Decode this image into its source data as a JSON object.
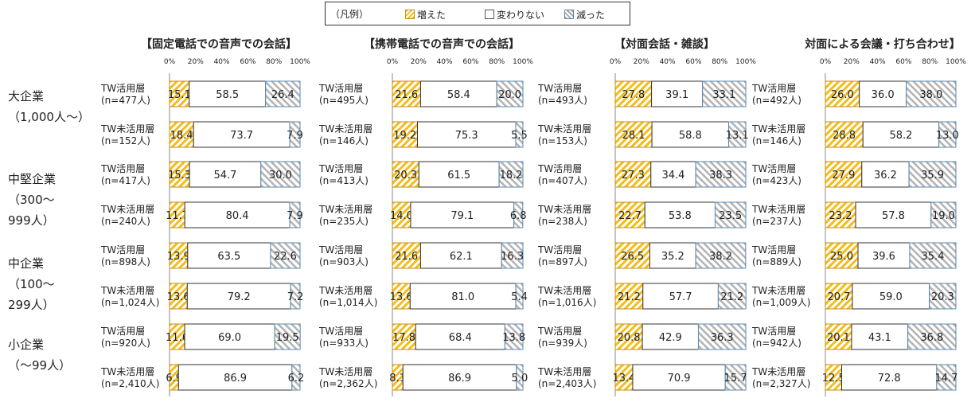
{
  "legend": {
    "title": "（凡例）",
    "items": [
      {
        "label": "増えた",
        "key": "inc"
      },
      {
        "label": "変わりない",
        "key": "same"
      },
      {
        "label": "減った",
        "key": "dec"
      }
    ]
  },
  "groups": [
    {
      "label": "大企業\n（1,000人～）"
    },
    {
      "label": "中堅企業\n（300～\n999人）"
    },
    {
      "label": "中企業\n（100～\n299人）"
    },
    {
      "label": "小企業\n（～99人）"
    }
  ],
  "colors": {
    "increase": "#f2bd1d",
    "increase_border": "#c98a18",
    "decrease": "#a8a8a8",
    "decrease_border": "#5a89b0",
    "bar_border": "#333333"
  },
  "chart_data": [
    {
      "type": "bar",
      "stacked": true,
      "orientation": "horizontal",
      "title": "【固定電話での音声での会話】",
      "xlim": [
        0,
        100
      ],
      "ticks": [
        "0%",
        "20%",
        "40%",
        "60%",
        "80%",
        "100%"
      ],
      "rows": [
        {
          "label": "TW活用層",
          "n": "(n=477人)",
          "values": [
            15.1,
            58.5,
            26.4
          ]
        },
        {
          "label": "TW未活用層",
          "n": "(n=152人)",
          "values": [
            18.4,
            73.7,
            7.9
          ]
        },
        {
          "label": "TW活用層",
          "n": "(n=417人)",
          "values": [
            15.3,
            54.7,
            30.0
          ]
        },
        {
          "label": "TW未活用層",
          "n": "(n=240人)",
          "values": [
            11.7,
            80.4,
            7.9
          ]
        },
        {
          "label": "TW活用層",
          "n": "(n=898人)",
          "values": [
            13.9,
            63.5,
            22.6
          ]
        },
        {
          "label": "TW未活用層",
          "n": "(n=1,024人)",
          "values": [
            13.6,
            79.2,
            7.2
          ]
        },
        {
          "label": "TW活用層",
          "n": "(n=920人)",
          "values": [
            11.6,
            69.0,
            19.5
          ]
        },
        {
          "label": "TW未活用層",
          "n": "(n=2,410人)",
          "values": [
            6.9,
            86.9,
            6.2
          ]
        }
      ]
    },
    {
      "type": "bar",
      "stacked": true,
      "orientation": "horizontal",
      "title": "【携帯電話での音声での会話】",
      "xlim": [
        0,
        100
      ],
      "ticks": [
        "0%",
        "20%",
        "40%",
        "60%",
        "80%",
        "100%"
      ],
      "rows": [
        {
          "label": "TW活用層",
          "n": "(n=495人)",
          "values": [
            21.6,
            58.4,
            20.0
          ]
        },
        {
          "label": "TW未活用層",
          "n": "(n=146人)",
          "values": [
            19.2,
            75.3,
            5.5
          ]
        },
        {
          "label": "TW活用層",
          "n": "(n=413人)",
          "values": [
            20.3,
            61.5,
            18.2
          ]
        },
        {
          "label": "TW未活用層",
          "n": "(n=235人)",
          "values": [
            14.0,
            79.1,
            6.8
          ]
        },
        {
          "label": "TW活用層",
          "n": "(n=903人)",
          "values": [
            21.6,
            62.1,
            16.3
          ]
        },
        {
          "label": "TW未活用層",
          "n": "(n=1,014人)",
          "values": [
            13.6,
            81.0,
            5.4
          ]
        },
        {
          "label": "TW活用層",
          "n": "(n=933人)",
          "values": [
            17.8,
            68.4,
            13.8
          ]
        },
        {
          "label": "TW未活用層",
          "n": "(n=2,362人)",
          "values": [
            8.1,
            86.9,
            5.0
          ]
        }
      ]
    },
    {
      "type": "bar",
      "stacked": true,
      "orientation": "horizontal",
      "title": "【対面会話・雑談】",
      "xlim": [
        0,
        100
      ],
      "ticks": [
        "0%",
        "20%",
        "40%",
        "60%",
        "80%",
        "100%"
      ],
      "rows": [
        {
          "label": "TW活用層",
          "n": "(n=493人)",
          "values": [
            27.8,
            39.1,
            33.1
          ]
        },
        {
          "label": "TW未活用層",
          "n": "(n=153人)",
          "values": [
            28.1,
            58.8,
            13.1
          ]
        },
        {
          "label": "TW活用層",
          "n": "(n=407人)",
          "values": [
            27.3,
            34.4,
            38.3
          ]
        },
        {
          "label": "TW未活用層",
          "n": "(n=238人)",
          "values": [
            22.7,
            53.8,
            23.5
          ]
        },
        {
          "label": "TW活用層",
          "n": "(n=897人)",
          "values": [
            26.5,
            35.2,
            38.2
          ]
        },
        {
          "label": "TW未活用層",
          "n": "(n=1,016人)",
          "values": [
            21.2,
            57.7,
            21.2
          ]
        },
        {
          "label": "TW活用層",
          "n": "(n=939人)",
          "values": [
            20.8,
            42.9,
            36.3
          ]
        },
        {
          "label": "TW未活用層",
          "n": "(n=2,403人)",
          "values": [
            13.4,
            70.9,
            15.7
          ]
        }
      ]
    },
    {
      "type": "bar",
      "stacked": true,
      "orientation": "horizontal",
      "title": "対面による会議・打ち合わせ】",
      "xlim": [
        0,
        100
      ],
      "ticks": [
        "0%",
        "20%",
        "40%",
        "60%",
        "80%",
        "100%"
      ],
      "rows": [
        {
          "label": "TW活用層",
          "n": "(n=492人)",
          "values": [
            26.0,
            36.0,
            38.0
          ]
        },
        {
          "label": "TW未活用層",
          "n": "(n=146人)",
          "values": [
            28.8,
            58.2,
            13.0
          ]
        },
        {
          "label": "TW活用層",
          "n": "(n=423人)",
          "values": [
            27.9,
            36.2,
            35.9
          ]
        },
        {
          "label": "TW未活用層",
          "n": "(n=237人)",
          "values": [
            23.2,
            57.8,
            19.0
          ]
        },
        {
          "label": "TW活用層",
          "n": "(n=889人)",
          "values": [
            25.0,
            39.6,
            35.4
          ]
        },
        {
          "label": "TW未活用層",
          "n": "(n=1,009人)",
          "values": [
            20.7,
            59.0,
            20.3
          ]
        },
        {
          "label": "TW活用層",
          "n": "(n=942人)",
          "values": [
            20.1,
            43.1,
            36.8
          ]
        },
        {
          "label": "TW未活用層",
          "n": "(n=2,327人)",
          "values": [
            12.5,
            72.8,
            14.7
          ]
        }
      ]
    }
  ]
}
